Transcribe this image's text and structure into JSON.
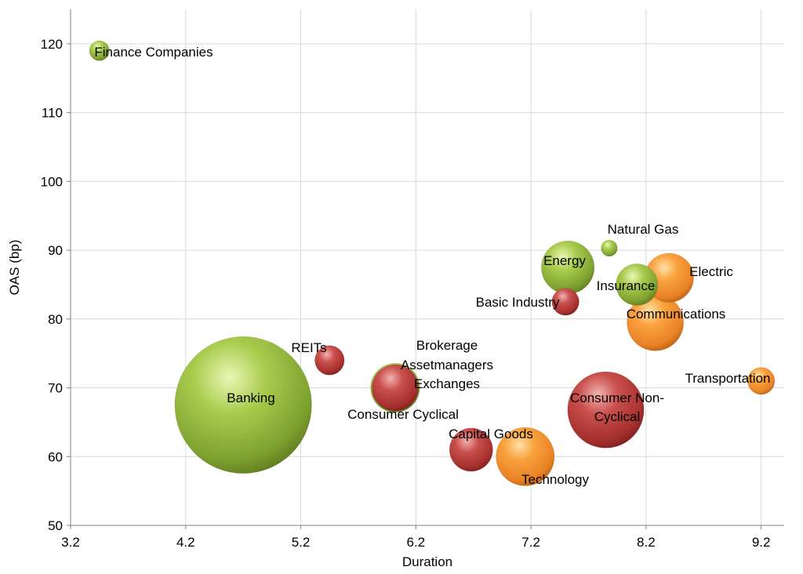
{
  "chart_data": {
    "type": "bubble",
    "title": "",
    "xlabel": "Duration",
    "ylabel": "OAS (bp)",
    "xlim": [
      3.2,
      9.4
    ],
    "ylim": [
      50,
      125
    ],
    "xticks": [
      "3.2",
      "4.2",
      "5.2",
      "6.2",
      "7.2",
      "8.2",
      "9.2"
    ],
    "yticks": [
      "50",
      "60",
      "70",
      "80",
      "90",
      "100",
      "110",
      "120"
    ],
    "grid": true,
    "colors": {
      "green": "#8db33a",
      "red": "#b83a3a",
      "orange": "#f08a2a"
    },
    "points": [
      {
        "label": "Finance Companies",
        "x": 3.45,
        "y": 119,
        "size": 0.6,
        "color": "green",
        "label_lines": [
          "Finance Companies"
        ],
        "label_pos": "right"
      },
      {
        "label": "Banking",
        "x": 4.7,
        "y": 67.5,
        "size": 28,
        "color": "green",
        "label_lines": [
          "Banking"
        ],
        "label_pos": "center"
      },
      {
        "label": "REITs",
        "x": 5.45,
        "y": 74,
        "size": 1.3,
        "color": "red",
        "label_lines": [
          "REITs"
        ],
        "label_pos": "left-top"
      },
      {
        "label": "Brokerage Assetmanagers Exchanges",
        "x": 6.02,
        "y": 70,
        "size": 3.6,
        "color": "green",
        "label_lines": [
          "Brokerage",
          "Assetmanagers",
          "Exchanges"
        ],
        "label_pos": "right-top"
      },
      {
        "label": "Consumer Cyclical",
        "x": 6.02,
        "y": 70,
        "size": 3.2,
        "color": "red",
        "label_lines": [
          "Consumer Cyclical"
        ],
        "label_pos": "below"
      },
      {
        "label": "Capital Goods",
        "x": 6.68,
        "y": 61,
        "size": 2.8,
        "color": "red",
        "label_lines": [
          "Capital Goods"
        ],
        "label_pos": "right"
      },
      {
        "label": "Technology",
        "x": 7.15,
        "y": 60,
        "size": 5.1,
        "color": "orange",
        "label_lines": [
          "Technology"
        ],
        "label_pos": "below"
      },
      {
        "label": "Basic Industry",
        "x": 7.5,
        "y": 82.5,
        "size": 1.1,
        "color": "red",
        "label_lines": [
          "Basic Industry"
        ],
        "label_pos": "left"
      },
      {
        "label": "Energy",
        "x": 7.52,
        "y": 87.5,
        "size": 4.2,
        "color": "green",
        "label_lines": [
          "Energy"
        ],
        "label_pos": "center"
      },
      {
        "label": "Natural Gas",
        "x": 7.88,
        "y": 90.3,
        "size": 0.4,
        "color": "green",
        "label_lines": [
          "Natural Gas"
        ],
        "label_pos": "right-top"
      },
      {
        "label": "Consumer Non-Cyclical",
        "x": 7.85,
        "y": 66.8,
        "size": 8.7,
        "color": "red",
        "label_lines": [
          "Consumer Non-",
          "Cyclical"
        ],
        "label_pos": "center"
      },
      {
        "label": "Electric",
        "x": 8.4,
        "y": 86,
        "size": 3.6,
        "color": "orange",
        "label_lines": [
          "Electric"
        ],
        "label_pos": "right"
      },
      {
        "label": "Communications",
        "x": 8.28,
        "y": 79.5,
        "size": 4.8,
        "color": "orange",
        "label_lines": [
          "Communications"
        ],
        "label_pos": "right"
      },
      {
        "label": "Insurance",
        "x": 8.12,
        "y": 85,
        "size": 2.6,
        "color": "green",
        "label_lines": [
          "Insurance"
        ],
        "label_pos": "center"
      },
      {
        "label": "Transportation",
        "x": 9.2,
        "y": 71,
        "size": 1.1,
        "color": "orange",
        "label_lines": [
          "Transportation"
        ],
        "label_pos": "left"
      }
    ]
  }
}
